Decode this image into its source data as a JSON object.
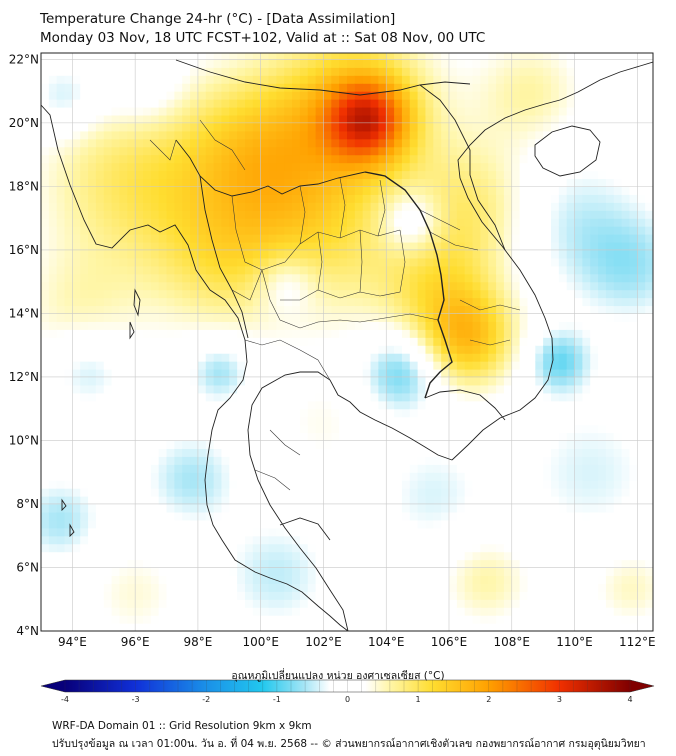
{
  "header": {
    "title": "Temperature Change 24-hr (°C) - [Data Assimilation]",
    "subtitle": "Monday 03 Nov, 18 UTC FCST+102, Valid at :: Sat 08 Nov, 00 UTC"
  },
  "map": {
    "lon_range": [
      93,
      112.5
    ],
    "lat_range": [
      4,
      22.2
    ],
    "lon_ticks": [
      {
        "value": 94,
        "label": "94°E"
      },
      {
        "value": 96,
        "label": "96°E"
      },
      {
        "value": 98,
        "label": "98°E"
      },
      {
        "value": 100,
        "label": "100°E"
      },
      {
        "value": 102,
        "label": "102°E"
      },
      {
        "value": 104,
        "label": "104°E"
      },
      {
        "value": 106,
        "label": "106°E"
      },
      {
        "value": 108,
        "label": "108°E"
      },
      {
        "value": 110,
        "label": "110°E"
      },
      {
        "value": 112,
        "label": "112°E"
      }
    ],
    "lat_ticks": [
      {
        "value": 22,
        "label": "22°N"
      },
      {
        "value": 20,
        "label": "20°N"
      },
      {
        "value": 18,
        "label": "18°N"
      },
      {
        "value": 16,
        "label": "16°N"
      },
      {
        "value": 14,
        "label": "14°N"
      },
      {
        "value": 12,
        "label": "12°N"
      },
      {
        "value": 10,
        "label": "10°N"
      },
      {
        "value": 8,
        "label": "8°N"
      },
      {
        "value": 6,
        "label": "6°N"
      },
      {
        "value": 4,
        "label": "4°N"
      }
    ],
    "field": {
      "units": "°C",
      "blobs": [
        {
          "lon": 103.4,
          "lat": 20.1,
          "value": 2.0,
          "spread": 0.9
        },
        {
          "lon": 103.0,
          "lat": 20.6,
          "value": 1.3,
          "spread": 1.8
        },
        {
          "lon": 99.8,
          "lat": 19.0,
          "value": 1.2,
          "spread": 1.8
        },
        {
          "lon": 95.8,
          "lat": 18.2,
          "value": 0.9,
          "spread": 2.0
        },
        {
          "lon": 101.8,
          "lat": 16.6,
          "value": 0.9,
          "spread": 2.0
        },
        {
          "lon": 106.8,
          "lat": 17.4,
          "value": 0.8,
          "spread": 1.5
        },
        {
          "lon": 106.6,
          "lat": 13.2,
          "value": 1.4,
          "spread": 1.1
        },
        {
          "lon": 105.6,
          "lat": 14.8,
          "value": 0.8,
          "spread": 1.4
        },
        {
          "lon": 108.6,
          "lat": 21.0,
          "value": 0.6,
          "spread": 1.2
        },
        {
          "lon": 98.6,
          "lat": 15.6,
          "value": 0.7,
          "spread": 1.6
        },
        {
          "lon": 94.2,
          "lat": 14.0,
          "value": 0.5,
          "spread": 1.4
        },
        {
          "lon": 93.8,
          "lat": 20.8,
          "value": -0.6,
          "spread": 0.8
        },
        {
          "lon": 96.3,
          "lat": 21.0,
          "value": -0.4,
          "spread": 0.9
        },
        {
          "lon": 104.8,
          "lat": 16.9,
          "value": -0.8,
          "spread": 0.7
        },
        {
          "lon": 104.5,
          "lat": 12.2,
          "value": -1.0,
          "spread": 0.9
        },
        {
          "lon": 109.5,
          "lat": 12.5,
          "value": -0.9,
          "spread": 0.7
        },
        {
          "lon": 100.8,
          "lat": 15.0,
          "value": -0.6,
          "spread": 0.7
        },
        {
          "lon": 98.7,
          "lat": 12.2,
          "value": -0.7,
          "spread": 0.7
        },
        {
          "lon": 94.5,
          "lat": 12.3,
          "value": -0.6,
          "spread": 0.9
        },
        {
          "lon": 93.6,
          "lat": 7.5,
          "value": -0.6,
          "spread": 0.9
        },
        {
          "lon": 97.8,
          "lat": 8.8,
          "value": -0.6,
          "spread": 1.0
        },
        {
          "lon": 100.5,
          "lat": 5.8,
          "value": -0.5,
          "spread": 1.2
        },
        {
          "lon": 109.8,
          "lat": 17.0,
          "value": -0.5,
          "spread": 1.5
        },
        {
          "lon": 111.8,
          "lat": 15.5,
          "value": -0.6,
          "spread": 1.2
        },
        {
          "lon": 110.5,
          "lat": 9.0,
          "value": -0.4,
          "spread": 1.5
        },
        {
          "lon": 105.5,
          "lat": 8.3,
          "value": -0.4,
          "spread": 1.2
        },
        {
          "lon": 107.2,
          "lat": 5.6,
          "value": 0.6,
          "spread": 1.0
        },
        {
          "lon": 111.8,
          "lat": 5.4,
          "value": 0.5,
          "spread": 0.9
        },
        {
          "lon": 96.0,
          "lat": 5.2,
          "value": 0.4,
          "spread": 1.1
        },
        {
          "lon": 102.0,
          "lat": 10.5,
          "value": 0.3,
          "spread": 1.2
        }
      ]
    }
  },
  "colorbar": {
    "label": "อุณหภูมิเปลี่ยนแปลง หน่วย องศาเซลเซียส (°C)",
    "min": -4,
    "max": 4,
    "ticks": [
      {
        "value": -4,
        "label": "-4"
      },
      {
        "value": -3,
        "label": "-3"
      },
      {
        "value": -2,
        "label": "-2"
      },
      {
        "value": -1,
        "label": "-1"
      },
      {
        "value": 0,
        "label": "0"
      },
      {
        "value": 1,
        "label": "1"
      },
      {
        "value": 2,
        "label": "2"
      },
      {
        "value": 3,
        "label": "3"
      },
      {
        "value": 4,
        "label": "4"
      }
    ],
    "stops": [
      {
        "v": -4.0,
        "c": "#08007a"
      },
      {
        "v": -3.0,
        "c": "#1030d8"
      },
      {
        "v": -2.0,
        "c": "#1a90e8"
      },
      {
        "v": -1.2,
        "c": "#22c8ee"
      },
      {
        "v": -0.6,
        "c": "#a8e6f6"
      },
      {
        "v": -0.25,
        "c": "#ffffff"
      },
      {
        "v": 0.25,
        "c": "#ffffff"
      },
      {
        "v": 0.6,
        "c": "#fff6a8"
      },
      {
        "v": 1.2,
        "c": "#ffdd30"
      },
      {
        "v": 2.0,
        "c": "#ffa000"
      },
      {
        "v": 3.0,
        "c": "#f03000"
      },
      {
        "v": 4.0,
        "c": "#800000"
      }
    ]
  },
  "footer": {
    "line1": "WRF-DA Domain 01 :: Grid Resolution 9km x 9km",
    "line2": "ปรับปรุงข้อมูล ณ เวลา 01:00น. วัน อ. ที่ 04 พ.ย. 2568 -- © ส่วนพยากรณ์อากาศเชิงตัวเลข กองพยากรณ์อากาศ กรมอุตุนิยมวิทยา"
  }
}
